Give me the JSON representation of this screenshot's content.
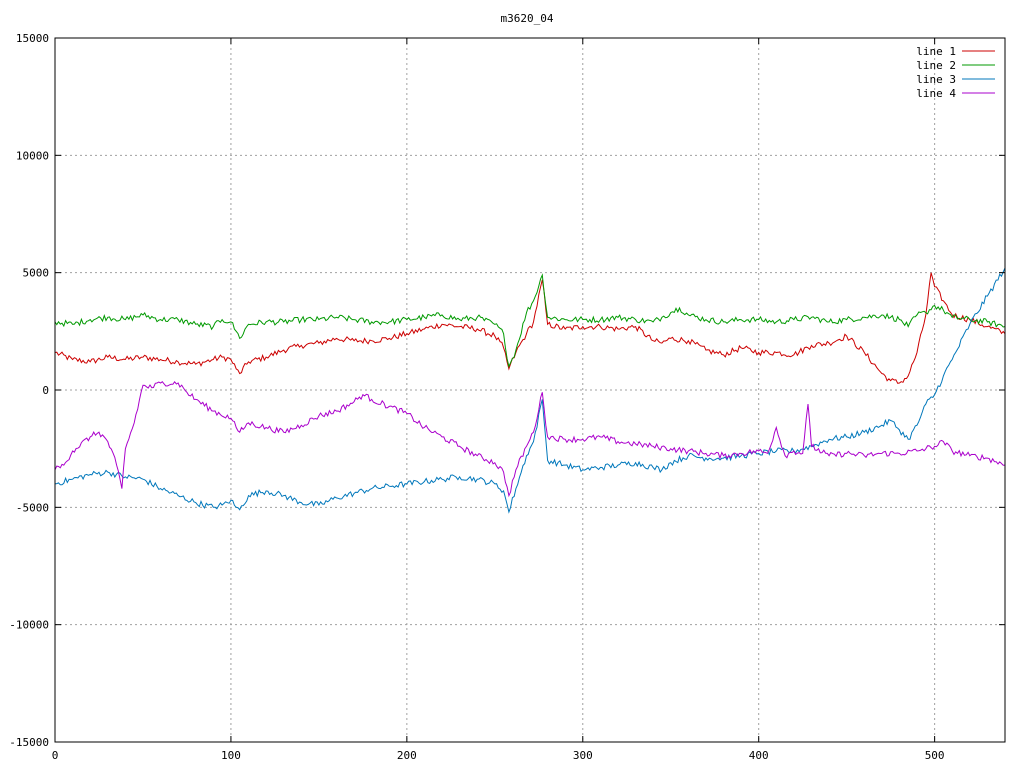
{
  "chart_data": {
    "type": "line",
    "title": "m3620_04",
    "xlabel": "",
    "ylabel": "",
    "xlim": [
      0,
      540
    ],
    "ylim": [
      -15000,
      15000
    ],
    "xticks": [
      0,
      100,
      200,
      300,
      400,
      500
    ],
    "yticks": [
      -15000,
      -10000,
      -5000,
      0,
      5000,
      10000,
      15000
    ],
    "grid": true,
    "legend_position": "top-right",
    "series": [
      {
        "name": "line 1",
        "color": "#cc0000",
        "x": [
          0,
          10,
          20,
          30,
          40,
          50,
          60,
          70,
          80,
          90,
          95,
          100,
          103,
          105,
          110,
          120,
          130,
          140,
          150,
          160,
          170,
          180,
          190,
          200,
          210,
          220,
          230,
          240,
          250,
          255,
          258,
          262,
          268,
          272,
          277,
          280,
          290,
          300,
          310,
          320,
          330,
          340,
          345,
          350,
          360,
          370,
          380,
          390,
          400,
          410,
          420,
          430,
          440,
          450,
          460,
          470,
          475,
          480,
          485,
          490,
          495,
          498,
          500,
          505,
          510,
          520,
          530,
          540
        ],
        "y": [
          1600,
          1300,
          1200,
          1400,
          1300,
          1400,
          1300,
          1200,
          1100,
          1300,
          1400,
          1300,
          900,
          700,
          1200,
          1400,
          1700,
          1900,
          2000,
          2200,
          2100,
          2100,
          2200,
          2400,
          2600,
          2800,
          2700,
          2600,
          2300,
          1800,
          900,
          1600,
          2400,
          2900,
          4700,
          2800,
          2600,
          2700,
          2700,
          2600,
          2700,
          2100,
          2000,
          2200,
          2100,
          1700,
          1500,
          1800,
          1600,
          1600,
          1500,
          1900,
          2000,
          2300,
          1600,
          700,
          400,
          300,
          600,
          1600,
          3200,
          5000,
          4400,
          3800,
          3200,
          3000,
          2700,
          2400
        ]
      },
      {
        "name": "line 2",
        "color": "#009900",
        "x": [
          0,
          10,
          20,
          30,
          40,
          50,
          60,
          70,
          80,
          90,
          95,
          100,
          103,
          105,
          110,
          120,
          130,
          140,
          150,
          160,
          170,
          180,
          190,
          200,
          210,
          220,
          230,
          240,
          250,
          255,
          258,
          262,
          268,
          272,
          277,
          280,
          290,
          300,
          310,
          320,
          330,
          340,
          345,
          350,
          355,
          360,
          370,
          380,
          390,
          400,
          410,
          420,
          430,
          440,
          450,
          460,
          470,
          475,
          480,
          485,
          490,
          495,
          500,
          505,
          510,
          520,
          530,
          540
        ],
        "y": [
          2900,
          2800,
          3000,
          3100,
          3000,
          3200,
          3000,
          3000,
          2800,
          2700,
          3000,
          2900,
          2500,
          2200,
          2800,
          2900,
          2900,
          3000,
          3000,
          3100,
          3000,
          2900,
          2900,
          3000,
          3100,
          3200,
          3000,
          3100,
          2800,
          2400,
          1000,
          1700,
          3300,
          3800,
          4900,
          3100,
          3000,
          3000,
          3000,
          3100,
          3000,
          2900,
          3100,
          3300,
          3500,
          3200,
          3000,
          2900,
          3000,
          3000,
          2900,
          3000,
          3100,
          2900,
          3000,
          3100,
          3200,
          3100,
          3000,
          2700,
          3200,
          3300,
          3600,
          3400,
          3100,
          3000,
          2900,
          2700
        ]
      },
      {
        "name": "line 3",
        "color": "#0077bb",
        "x": [
          0,
          10,
          20,
          30,
          40,
          50,
          60,
          70,
          80,
          90,
          95,
          100,
          103,
          105,
          110,
          120,
          130,
          140,
          150,
          160,
          170,
          180,
          190,
          200,
          210,
          220,
          230,
          240,
          250,
          255,
          258,
          262,
          268,
          272,
          277,
          280,
          290,
          300,
          310,
          320,
          330,
          340,
          345,
          350,
          360,
          370,
          380,
          390,
          400,
          410,
          420,
          430,
          440,
          450,
          460,
          470,
          475,
          480,
          485,
          490,
          495,
          500,
          505,
          510,
          520,
          530,
          540
        ],
        "y": [
          -4000,
          -3800,
          -3600,
          -3500,
          -3700,
          -3800,
          -4200,
          -4500,
          -4800,
          -5000,
          -4900,
          -4700,
          -5000,
          -5100,
          -4500,
          -4300,
          -4500,
          -4800,
          -4900,
          -4600,
          -4400,
          -4200,
          -4100,
          -4000,
          -3900,
          -3800,
          -3700,
          -3800,
          -4000,
          -4300,
          -5200,
          -4200,
          -2800,
          -2200,
          -400,
          -3000,
          -3200,
          -3400,
          -3300,
          -3200,
          -3100,
          -3300,
          -3400,
          -3100,
          -2800,
          -2900,
          -2900,
          -2800,
          -2700,
          -2600,
          -2600,
          -2400,
          -2100,
          -2000,
          -1800,
          -1500,
          -1300,
          -1700,
          -2100,
          -1500,
          -600,
          -200,
          600,
          1300,
          2800,
          4000,
          5200
        ]
      },
      {
        "name": "line 4",
        "color": "#aa00cc",
        "x": [
          0,
          5,
          10,
          20,
          25,
          30,
          35,
          38,
          40,
          45,
          50,
          55,
          60,
          70,
          75,
          80,
          90,
          100,
          103,
          105,
          110,
          120,
          130,
          140,
          150,
          160,
          170,
          175,
          180,
          190,
          200,
          210,
          220,
          230,
          240,
          250,
          255,
          258,
          262,
          268,
          272,
          277,
          280,
          290,
          300,
          310,
          320,
          330,
          340,
          350,
          360,
          370,
          380,
          390,
          400,
          405,
          410,
          415,
          420,
          425,
          428,
          430,
          440,
          450,
          460,
          470,
          480,
          490,
          500,
          505,
          510,
          520,
          530,
          540
        ],
        "y": [
          -3400,
          -3200,
          -2600,
          -2000,
          -1800,
          -2200,
          -3200,
          -4200,
          -2500,
          -1400,
          200,
          100,
          300,
          300,
          -100,
          -400,
          -900,
          -1200,
          -1600,
          -1800,
          -1400,
          -1600,
          -1800,
          -1500,
          -1100,
          -900,
          -500,
          -200,
          -400,
          -700,
          -1000,
          -1600,
          -2000,
          -2400,
          -2800,
          -3100,
          -3500,
          -4500,
          -3400,
          -2400,
          -1800,
          -100,
          -2000,
          -2100,
          -2100,
          -2000,
          -2200,
          -2300,
          -2400,
          -2500,
          -2600,
          -2700,
          -2800,
          -2700,
          -2600,
          -2700,
          -1600,
          -2800,
          -2600,
          -2700,
          -600,
          -2400,
          -2800,
          -2700,
          -2800,
          -2700,
          -2700,
          -2600,
          -2400,
          -2200,
          -2600,
          -2800,
          -2900,
          -3200
        ]
      }
    ]
  }
}
